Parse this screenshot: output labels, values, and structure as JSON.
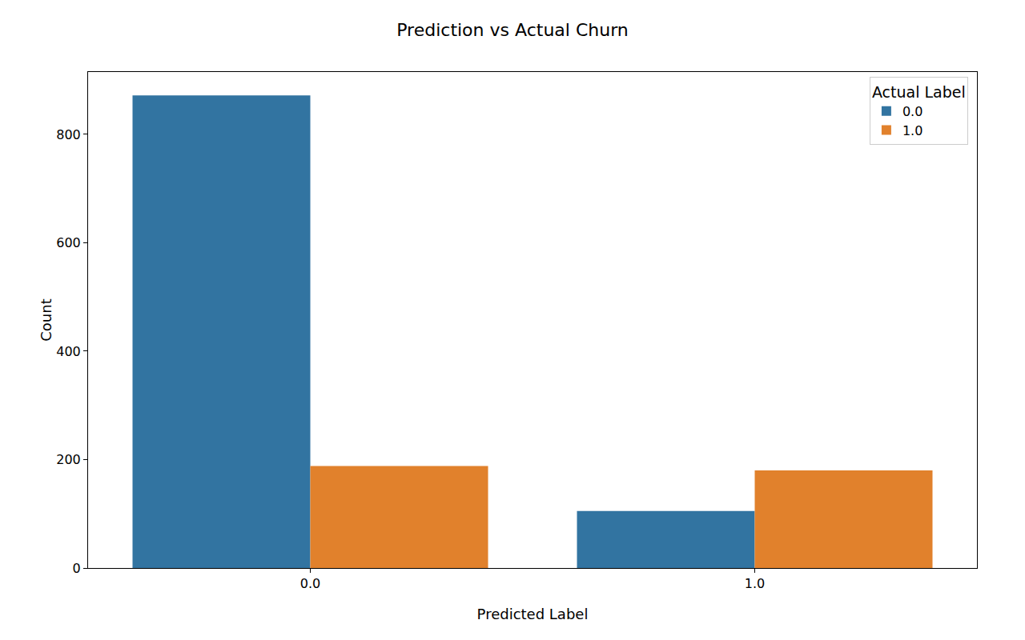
{
  "chart_data": {
    "type": "bar",
    "title": "Prediction vs Actual Churn",
    "x_label": "Predicted Label",
    "y_label": "Count",
    "legend_title": "Actual Label",
    "categories": [
      "0.0",
      "1.0"
    ],
    "series": [
      {
        "name": "0.0",
        "color": "#3274a1",
        "values": [
          872,
          105
        ]
      },
      {
        "name": "1.0",
        "color": "#e1812c",
        "values": [
          188,
          180
        ]
      }
    ],
    "ylim": [
      0,
      915
    ],
    "yticks": [
      0,
      200,
      400,
      600,
      800
    ],
    "grid": false,
    "legend": "top-right"
  }
}
